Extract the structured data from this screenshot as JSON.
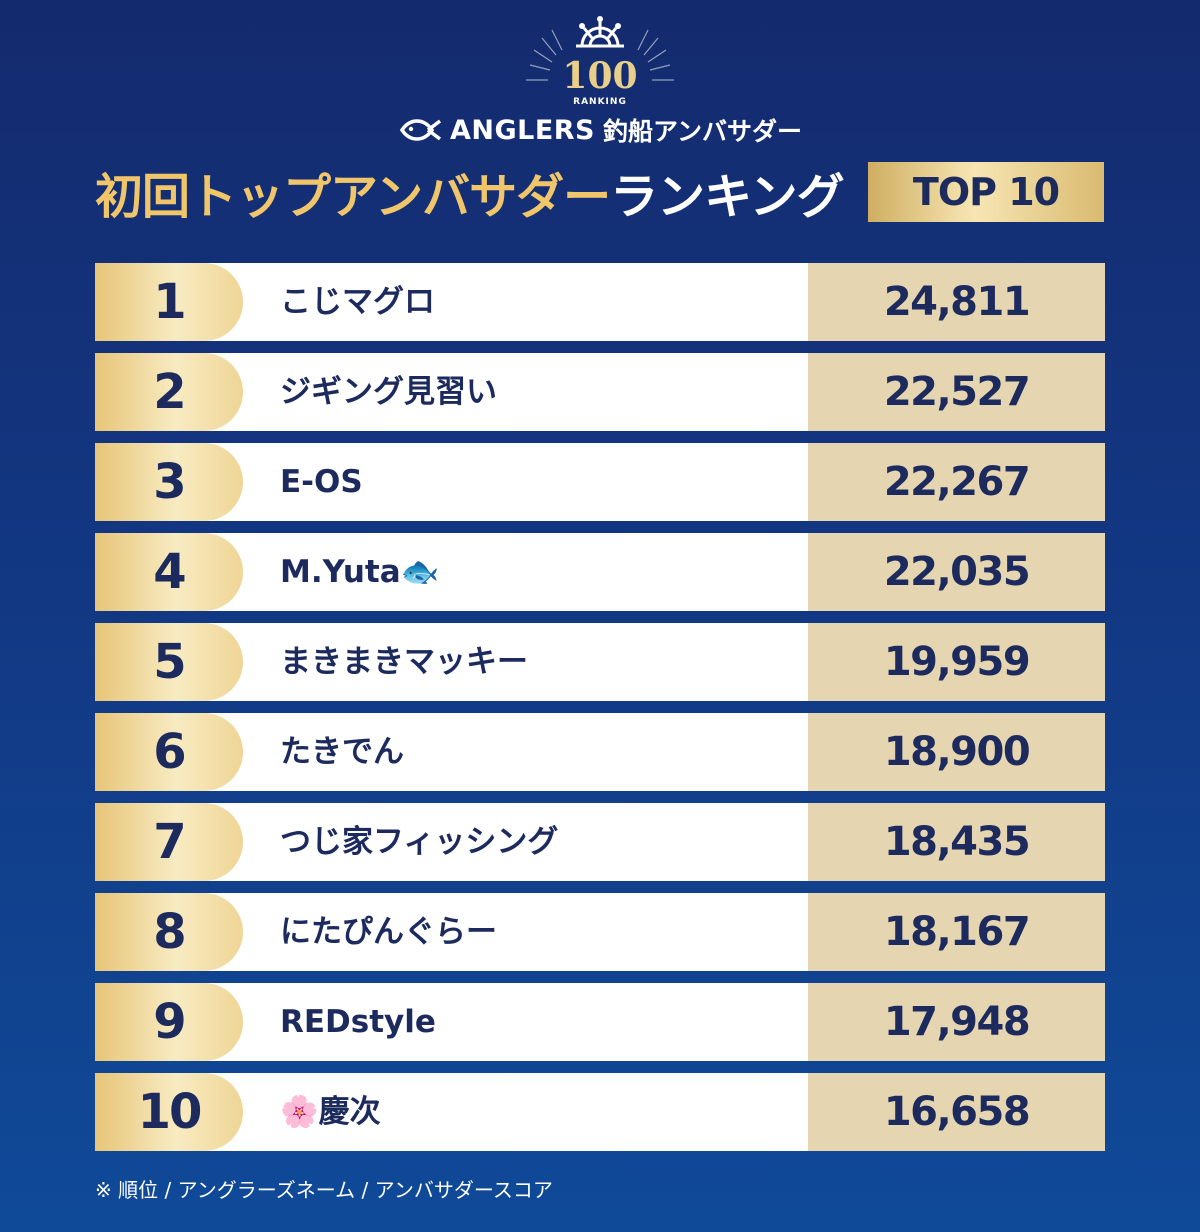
{
  "logo": {
    "number": "100",
    "word": "RANKING"
  },
  "brand": {
    "name": "ANGLERS",
    "subtitle": "釣船アンバサダー",
    "icon": "fish-icon"
  },
  "heading": {
    "gold_part": "初回トップアンバサダー",
    "white_part": "ランキング",
    "badge": "TOP 10"
  },
  "colors": {
    "navy": "#1c2a5e",
    "gold": "#f1c66a",
    "score_bg": "#e5d5b1",
    "bg_top": "#142a6e",
    "bg_bottom": "#0f4a98"
  },
  "rankings": [
    {
      "rank": "1",
      "name": "こじマグロ",
      "score": "24,811"
    },
    {
      "rank": "2",
      "name": "ジギング見習い",
      "score": "22,527"
    },
    {
      "rank": "3",
      "name": "E-OS",
      "score": "22,267"
    },
    {
      "rank": "4",
      "name": "M.Yuta🐟",
      "score": "22,035"
    },
    {
      "rank": "5",
      "name": "まきまきマッキー",
      "score": "19,959"
    },
    {
      "rank": "6",
      "name": "たきでん",
      "score": "18,900"
    },
    {
      "rank": "7",
      "name": "つじ家フィッシング",
      "score": "18,435"
    },
    {
      "rank": "8",
      "name": "にたぴんぐらー",
      "score": "18,167"
    },
    {
      "rank": "9",
      "name": "REDstyle",
      "score": "17,948"
    },
    {
      "rank": "10",
      "name": "🌸慶次",
      "score": "16,658"
    }
  ],
  "footnote": "※ 順位 / アングラーズネーム / アンバサダースコア"
}
